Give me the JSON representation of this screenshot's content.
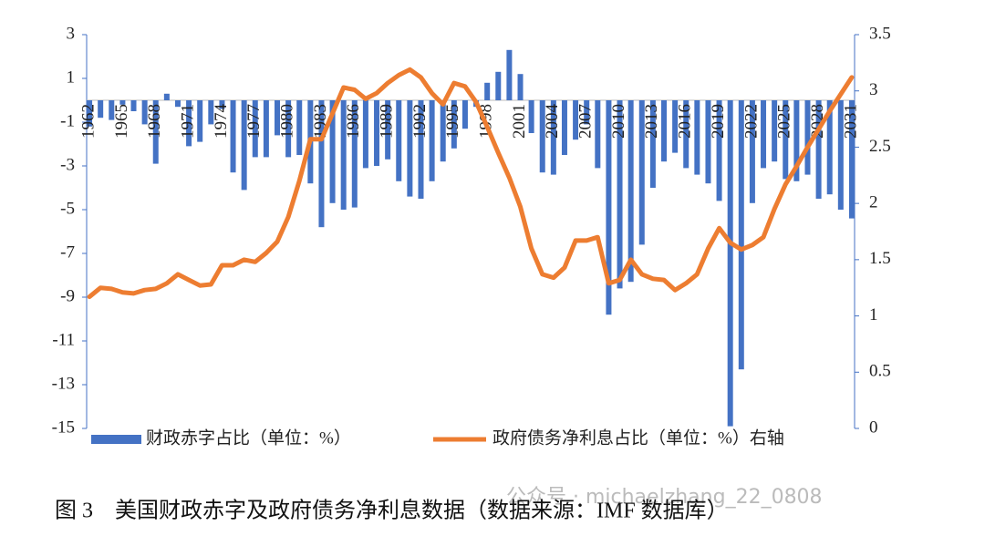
{
  "chart_data": {
    "type": "bar",
    "title": "图 3　美国财政赤字及政府债务净利息数据（数据来源：IMF 数据库）",
    "categories": [
      "1962",
      null,
      null,
      "1965",
      null,
      null,
      "1968",
      null,
      null,
      "1971",
      null,
      null,
      "1974",
      null,
      null,
      "1977",
      null,
      null,
      "1980",
      null,
      null,
      "1983",
      null,
      null,
      "1986",
      null,
      null,
      "1989",
      null,
      null,
      "1992",
      null,
      null,
      "1995",
      null,
      null,
      "1998",
      null,
      null,
      "2001",
      null,
      null,
      "2004",
      null,
      null,
      "2007",
      null,
      null,
      "2010",
      null,
      null,
      "2013",
      null,
      null,
      "2016",
      null,
      null,
      "2019",
      null,
      null,
      "2022",
      null,
      null,
      "2025",
      null,
      null,
      "2028",
      null,
      null,
      "2031"
    ],
    "series": [
      {
        "name": "财政赤字占比（单位：%）",
        "type": "bar",
        "color": "#4472c4",
        "values": [
          -1.2,
          -0.8,
          -0.9,
          -0.2,
          -0.5,
          -1.1,
          -2.9,
          0.3,
          -0.3,
          -2.1,
          -1.9,
          -1.1,
          -0.4,
          -3.3,
          -4.1,
          -2.6,
          -2.6,
          -1.6,
          -2.6,
          -2.5,
          -3.8,
          -5.8,
          -4.7,
          -5.0,
          -4.9,
          -3.1,
          -3.0,
          -2.7,
          -3.7,
          -4.4,
          -4.5,
          -3.7,
          -2.8,
          -2.2,
          -1.3,
          -0.3,
          0.8,
          1.3,
          2.3,
          1.2,
          -1.5,
          -3.3,
          -3.4,
          -2.5,
          -1.8,
          -1.1,
          -3.1,
          -9.8,
          -8.6,
          -8.3,
          -6.6,
          -4.0,
          -2.8,
          -2.4,
          -3.1,
          -3.4,
          -3.8,
          -4.6,
          -14.9,
          -12.3,
          -4.7,
          -3.1,
          -2.8,
          -3.6,
          -3.7,
          -3.4,
          -4.5,
          -4.3,
          -5.0,
          -5.4
        ]
      },
      {
        "name": "政府债务净利息占比（单位：%）右轴",
        "type": "line",
        "axis": "y2",
        "color": "#ed7d31",
        "values": [
          1.17,
          1.25,
          1.24,
          1.21,
          1.2,
          1.23,
          1.24,
          1.29,
          1.37,
          1.32,
          1.27,
          1.28,
          1.45,
          1.45,
          1.5,
          1.48,
          1.56,
          1.66,
          1.88,
          2.2,
          2.57,
          2.57,
          2.8,
          3.03,
          3.01,
          2.93,
          2.98,
          3.07,
          3.14,
          3.19,
          3.12,
          2.98,
          2.88,
          3.07,
          3.04,
          2.9,
          2.68,
          2.45,
          2.23,
          1.97,
          1.6,
          1.37,
          1.34,
          1.43,
          1.67,
          1.67,
          1.7,
          1.29,
          1.32,
          1.5,
          1.37,
          1.33,
          1.32,
          1.23,
          1.29,
          1.37,
          1.6,
          1.78,
          1.65,
          1.59,
          1.63,
          1.7,
          1.95,
          2.17,
          2.33,
          2.5,
          2.66,
          2.82,
          2.97,
          3.12
        ]
      }
    ],
    "ylim": [
      -15,
      3
    ],
    "yticks": [
      3,
      1,
      -1,
      -3,
      -5,
      -7,
      -9,
      -11,
      -13,
      -15
    ],
    "y2lim": [
      0,
      3.5
    ],
    "y2ticks": [
      3.5,
      3,
      2.5,
      2,
      1.5,
      1,
      0.5,
      0
    ],
    "legend": "bottom"
  },
  "watermark": "公众号 · michaelzhang_22_0808"
}
